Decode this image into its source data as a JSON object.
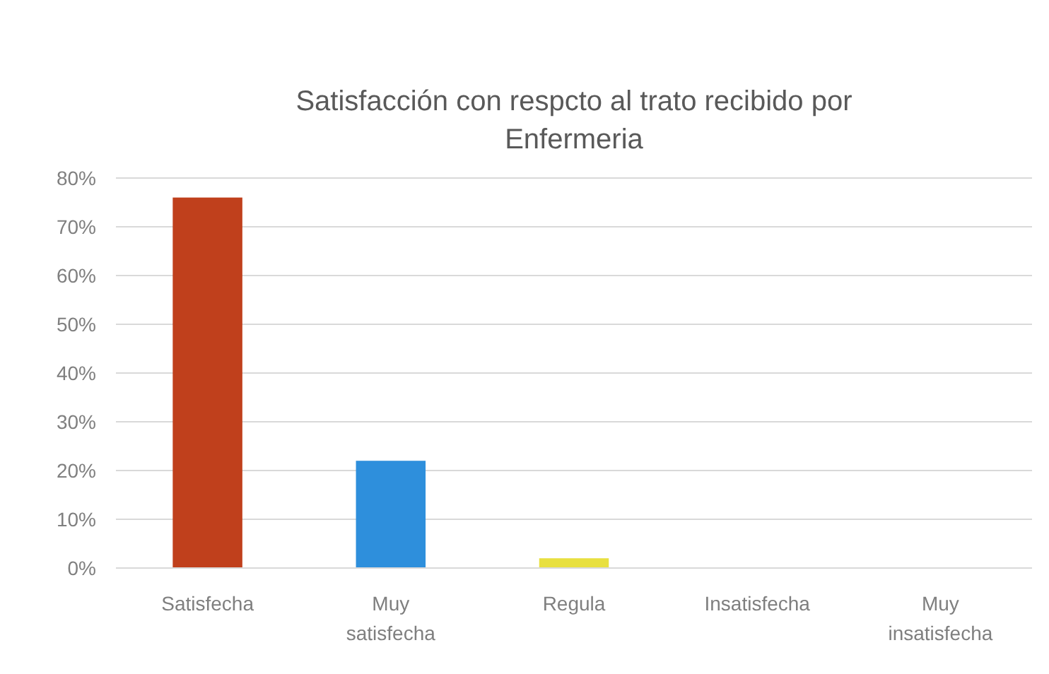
{
  "chart_data": {
    "type": "bar",
    "title": "Satisfacción con respcto al trato recibido por Enfermeria",
    "categories": [
      "Satisfecha",
      "Muy satisfecha",
      "Regula",
      "Insatisfecha",
      "Muy insatisfecha"
    ],
    "values": [
      76,
      22,
      2,
      0,
      0
    ],
    "colors": [
      "#c0401c",
      "#2e8fdc",
      "#e8e040",
      "#a5a5a5",
      "#4472c4"
    ],
    "ylim": [
      0,
      80
    ],
    "yticks": [
      {
        "value": 0,
        "label": "0%"
      },
      {
        "value": 10,
        "label": "10%"
      },
      {
        "value": 20,
        "label": "20%"
      },
      {
        "value": 30,
        "label": "30%"
      },
      {
        "value": 40,
        "label": "40%"
      },
      {
        "value": 50,
        "label": "50%"
      },
      {
        "value": 60,
        "label": "60%"
      },
      {
        "value": 70,
        "label": "70%"
      },
      {
        "value": 80,
        "label": "80%"
      }
    ],
    "grid": "y"
  }
}
